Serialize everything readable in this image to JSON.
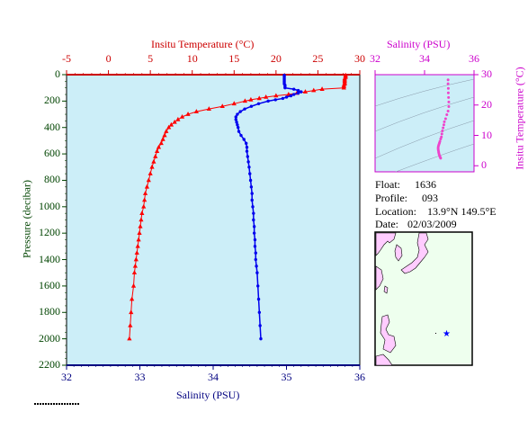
{
  "chart_data": [
    {
      "type": "line",
      "title": "",
      "top_axis_label": "Insitu Temperature (°C)",
      "bottom_axis_label": "Salinity (PSU)",
      "ylabel": "Pressure (decibar)",
      "ylim": [
        2200,
        0
      ],
      "temp_xlim": [
        -5,
        30
      ],
      "sal_xlim": [
        32,
        36
      ],
      "temp_ticks": [
        "-5",
        "0",
        "5",
        "10",
        "15",
        "20",
        "25",
        "30"
      ],
      "sal_ticks": [
        "32",
        "33",
        "34",
        "35",
        "36"
      ],
      "pressure_ticks": [
        "0",
        "200",
        "400",
        "600",
        "800",
        "1000",
        "1200",
        "1400",
        "1600",
        "1800",
        "2000",
        "2200"
      ],
      "colors": {
        "temperature": "#ff0000",
        "salinity": "#0000ee",
        "background": "#cceef8",
        "top_axis": "#cc0000",
        "bottom_axis": "#000080",
        "left_axis": "#004400"
      },
      "series": [
        {
          "marker": "triangle",
          "pressure": [
            5,
            10,
            20,
            30,
            40,
            50,
            60,
            70,
            80,
            90,
            100,
            110,
            120,
            130,
            140,
            150,
            160,
            170,
            180,
            190,
            200,
            220,
            240,
            260,
            280,
            300,
            320,
            340,
            360,
            380,
            400,
            430,
            460,
            490,
            520,
            550,
            580,
            620,
            660,
            700,
            750,
            800,
            850,
            900,
            950,
            1000,
            1050,
            1100,
            1150,
            1200,
            1250,
            1300,
            1350,
            1400,
            1450,
            1500,
            1600,
            1700,
            1800,
            1900,
            2000
          ],
          "temperature": [
            28.3,
            28.3,
            28.3,
            28.2,
            28.2,
            28.2,
            28.2,
            28.2,
            28.1,
            28.1,
            28.1,
            25.5,
            24.5,
            23.5,
            22.5,
            21.5,
            20.0,
            18.8,
            18.0,
            17.0,
            16.3,
            15.0,
            13.6,
            12.0,
            10.5,
            9.5,
            8.8,
            8.3,
            7.9,
            7.5,
            7.2,
            6.9,
            6.7,
            6.5,
            6.3,
            6.0,
            5.8,
            5.6,
            5.4,
            5.2,
            5.0,
            4.8,
            4.6,
            4.4,
            4.3,
            4.2,
            4.0,
            3.9,
            3.8,
            3.7,
            3.6,
            3.5,
            3.4,
            3.3,
            3.2,
            3.1,
            3.0,
            2.8,
            2.7,
            2.6,
            2.5
          ]
        },
        {
          "marker": "dot",
          "pressure": [
            5,
            10,
            20,
            30,
            40,
            50,
            60,
            70,
            80,
            90,
            100,
            110,
            120,
            130,
            140,
            150,
            160,
            170,
            180,
            190,
            200,
            220,
            240,
            260,
            280,
            300,
            320,
            340,
            360,
            380,
            400,
            430,
            460,
            490,
            520,
            550,
            580,
            620,
            660,
            700,
            750,
            800,
            850,
            900,
            950,
            1000,
            1050,
            1100,
            1150,
            1200,
            1250,
            1300,
            1350,
            1400,
            1450,
            1500,
            1600,
            1700,
            1800,
            1900,
            2000
          ],
          "salinity": [
            34.97,
            34.97,
            34.97,
            34.97,
            34.97,
            34.97,
            34.97,
            34.97,
            34.98,
            34.98,
            34.98,
            35.1,
            35.16,
            35.2,
            35.16,
            35.1,
            35.06,
            35.0,
            34.95,
            34.85,
            34.75,
            34.62,
            34.52,
            34.43,
            34.37,
            34.33,
            34.31,
            34.31,
            34.32,
            34.33,
            34.34,
            34.35,
            34.38,
            34.42,
            34.45,
            34.46,
            34.46,
            34.47,
            34.48,
            34.49,
            34.5,
            34.51,
            34.52,
            34.53,
            34.53,
            34.54,
            34.55,
            34.55,
            34.56,
            34.56,
            34.57,
            34.57,
            34.58,
            34.58,
            34.59,
            34.6,
            34.61,
            34.62,
            34.63,
            34.64,
            34.65
          ]
        }
      ]
    },
    {
      "type": "scatter",
      "title": "",
      "xlabel": "Salinity (PSU)",
      "ylabel": "Insitu Temperature (°C)",
      "xlim": [
        32,
        36
      ],
      "ylim": [
        -2,
        30
      ],
      "x_ticks": [
        "32",
        "34",
        "36"
      ],
      "y_ticks": [
        "0",
        "10",
        "20",
        "30"
      ],
      "colors": {
        "points": "#ee44cc",
        "axis": "#cc00cc",
        "background": "#cceef8"
      },
      "x": [
        34.95,
        34.95,
        34.96,
        34.96,
        34.97,
        34.98,
        34.98,
        34.95,
        34.9,
        34.85,
        34.8,
        34.78,
        34.75,
        34.72,
        34.7,
        34.68,
        34.65,
        34.62,
        34.6,
        34.58,
        34.56,
        34.55,
        34.55,
        34.56,
        34.57,
        34.58,
        34.6,
        34.62,
        34.64,
        34.65
      ],
      "y": [
        28.3,
        27.0,
        25.5,
        24.0,
        22.5,
        21.0,
        19.5,
        18.0,
        16.8,
        15.5,
        14.5,
        13.5,
        12.5,
        11.5,
        10.5,
        9.5,
        8.8,
        8.0,
        7.5,
        7.0,
        6.5,
        6.0,
        5.5,
        5.0,
        4.5,
        4.0,
        3.5,
        3.0,
        2.7,
        2.5
      ]
    }
  ],
  "info": {
    "float_label": "Float:",
    "float_value": "1636",
    "profile_label": "Profile:",
    "profile_value": "093",
    "location_label": "Location:",
    "location_value": "13.9°N  149.5°E",
    "date_label": "Date:",
    "date_value": "02/03/2009"
  },
  "map": {
    "land_color": "#ffccff",
    "sea_color": "#eeffee",
    "float_marker_color": "#0000ff"
  }
}
